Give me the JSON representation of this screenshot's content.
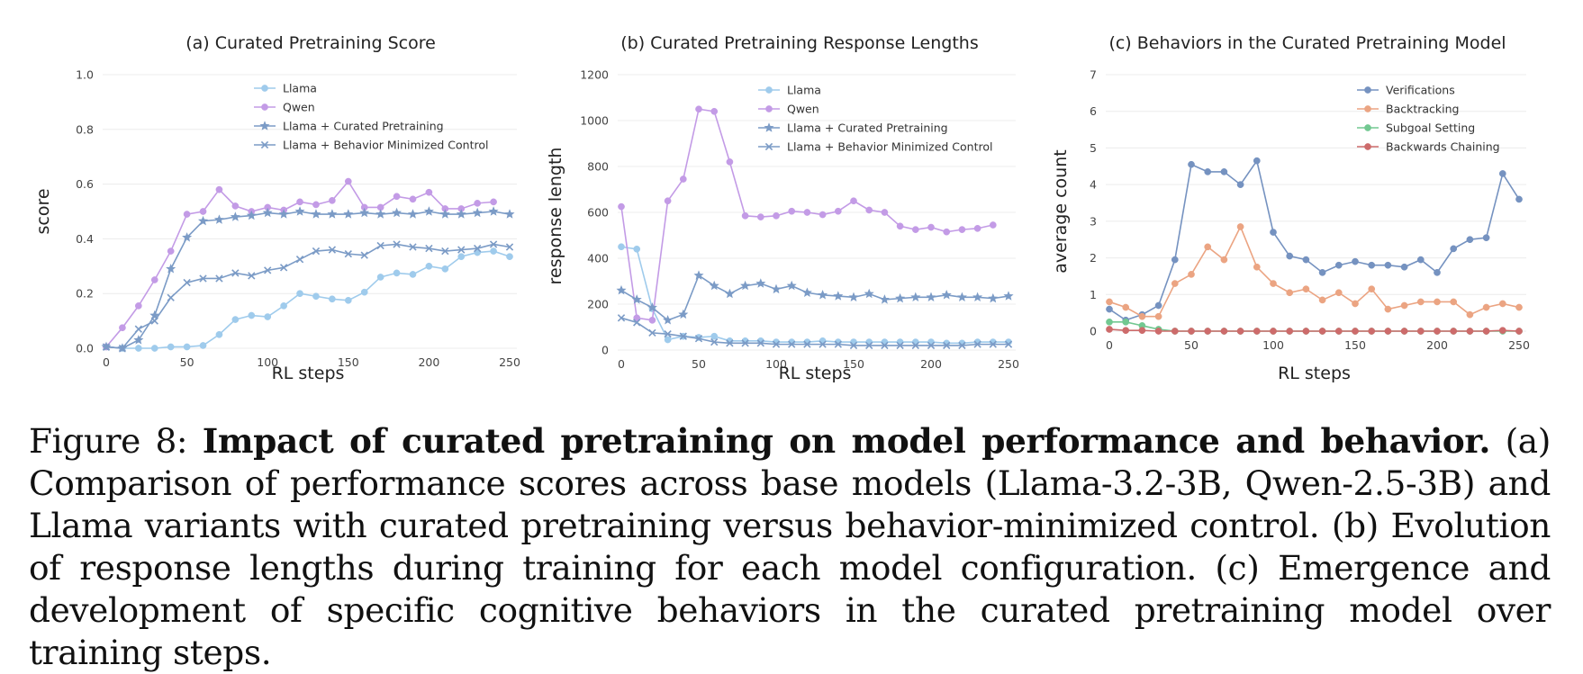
{
  "figure": {
    "caption_label": "Figure 8:",
    "caption_title": "Impact of curated pretraining on model performance and behavior.",
    "caption_body": "(a) Comparison of performance scores across base models (Llama-3.2-3B, Qwen-2.5-3B) and Llama variants with curated pretraining versus behavior-minimized control. (b) Evolution of response lengths during training for each model configuration. (c) Emergence and development of specific cognitive behaviors in the curated pretraining model over training steps."
  },
  "colors": {
    "llama": "#9fcbec",
    "qwen": "#c39be6",
    "curated": "#7b9bc6",
    "control": "#7b9bc6",
    "verifications": "#7592c0",
    "backtracking": "#eba482",
    "subgoal": "#72c891",
    "backwards": "#cd6b6b"
  },
  "chart_data": [
    {
      "type": "line",
      "title": "(a) Curated Pretraining Score",
      "xlabel": "RL steps",
      "ylabel": "score",
      "xlim": [
        0,
        250
      ],
      "ylim": [
        0,
        1.0
      ],
      "xticks": [
        "0",
        "50",
        "100",
        "150",
        "200",
        "250"
      ],
      "yticks": [
        "0.0",
        "0.2",
        "0.4",
        "0.6",
        "0.8",
        "1.0"
      ],
      "grid": true,
      "legend_position": "top-right",
      "x": [
        0,
        10,
        20,
        30,
        40,
        50,
        60,
        70,
        80,
        90,
        100,
        110,
        120,
        130,
        140,
        150,
        160,
        170,
        180,
        190,
        200,
        210,
        220,
        230,
        240,
        250
      ],
      "series": [
        {
          "name": "Llama",
          "marker": "circle",
          "color_key": "llama",
          "values": [
            0.005,
            0.0,
            0.0,
            0.0,
            0.005,
            0.005,
            0.01,
            0.05,
            0.105,
            0.12,
            0.115,
            0.155,
            0.2,
            0.19,
            0.18,
            0.175,
            0.205,
            0.26,
            0.275,
            0.27,
            0.3,
            0.29,
            0.335,
            0.35,
            0.355,
            0.335
          ]
        },
        {
          "name": "Qwen",
          "marker": "circle",
          "color_key": "qwen",
          "values": [
            0.005,
            0.075,
            0.155,
            0.25,
            0.355,
            0.49,
            0.5,
            0.58,
            0.52,
            0.5,
            0.515,
            0.505,
            0.535,
            0.525,
            0.54,
            0.61,
            0.515,
            0.515,
            0.555,
            0.545,
            0.57,
            0.51,
            0.51,
            0.53,
            0.535,
            null
          ]
        },
        {
          "name": "Llama + Curated Pretraining",
          "marker": "star",
          "color_key": "curated",
          "values": [
            0.005,
            0.0,
            0.03,
            0.12,
            0.29,
            0.405,
            0.465,
            0.47,
            0.48,
            0.485,
            0.495,
            0.49,
            0.5,
            0.49,
            0.49,
            0.49,
            0.495,
            0.49,
            0.495,
            0.49,
            0.5,
            0.49,
            0.49,
            0.495,
            0.5,
            0.49
          ]
        },
        {
          "name": "Llama + Behavior Minimized Control",
          "marker": "x",
          "color_key": "control",
          "values": [
            0.005,
            0.0,
            0.07,
            0.1,
            0.185,
            0.24,
            0.255,
            0.255,
            0.275,
            0.265,
            0.285,
            0.295,
            0.325,
            0.355,
            0.36,
            0.345,
            0.34,
            0.375,
            0.38,
            0.37,
            0.365,
            0.355,
            0.36,
            0.365,
            0.38,
            0.37
          ]
        }
      ]
    },
    {
      "type": "line",
      "title": "(b) Curated Pretraining Response Lengths",
      "xlabel": "RL steps",
      "ylabel": "response length",
      "xlim": [
        0,
        250
      ],
      "ylim": [
        0,
        1200
      ],
      "xticks": [
        "0",
        "50",
        "100",
        "150",
        "200",
        "250"
      ],
      "yticks": [
        "0",
        "200",
        "400",
        "600",
        "800",
        "1000",
        "1200"
      ],
      "grid": true,
      "legend_position": "top-right",
      "x": [
        0,
        10,
        20,
        30,
        40,
        50,
        60,
        70,
        80,
        90,
        100,
        110,
        120,
        130,
        140,
        150,
        160,
        170,
        180,
        190,
        200,
        210,
        220,
        230,
        240,
        250
      ],
      "series": [
        {
          "name": "Llama",
          "marker": "circle",
          "color_key": "llama",
          "values": [
            450,
            440,
            180,
            45,
            60,
            55,
            60,
            40,
            40,
            40,
            35,
            35,
            35,
            40,
            35,
            35,
            35,
            35,
            35,
            35,
            35,
            30,
            30,
            35,
            35,
            35
          ]
        },
        {
          "name": "Qwen",
          "marker": "circle",
          "color_key": "qwen",
          "values": [
            625,
            140,
            130,
            650,
            745,
            1050,
            1040,
            820,
            585,
            580,
            585,
            605,
            600,
            590,
            605,
            650,
            610,
            600,
            540,
            525,
            535,
            515,
            525,
            530,
            545,
            null
          ]
        },
        {
          "name": "Llama + Curated Pretraining",
          "marker": "star",
          "color_key": "curated",
          "values": [
            260,
            220,
            185,
            130,
            155,
            325,
            280,
            245,
            280,
            290,
            265,
            280,
            250,
            240,
            235,
            230,
            245,
            220,
            225,
            230,
            230,
            240,
            230,
            230,
            225,
            235
          ]
        },
        {
          "name": "Llama + Behavior Minimized Control",
          "marker": "x",
          "color_key": "control",
          "values": [
            140,
            120,
            75,
            70,
            60,
            50,
            35,
            30,
            30,
            30,
            25,
            25,
            25,
            25,
            25,
            20,
            20,
            20,
            20,
            20,
            20,
            20,
            20,
            25,
            25,
            25
          ]
        }
      ]
    },
    {
      "type": "line",
      "title": "(c) Behaviors in the Curated Pretraining Model",
      "xlabel": "RL steps",
      "ylabel": "average count",
      "xlim": [
        0,
        250
      ],
      "ylim": [
        0,
        7
      ],
      "xticks": [
        "0",
        "50",
        "100",
        "150",
        "200",
        "250"
      ],
      "yticks": [
        "0",
        "1",
        "2",
        "3",
        "4",
        "5",
        "6",
        "7"
      ],
      "grid": true,
      "legend_position": "top-right",
      "x": [
        0,
        10,
        20,
        30,
        40,
        50,
        60,
        70,
        80,
        90,
        100,
        110,
        120,
        130,
        140,
        150,
        160,
        170,
        180,
        190,
        200,
        210,
        220,
        230,
        240,
        250
      ],
      "series": [
        {
          "name": "Verifications",
          "marker": "circle",
          "color_key": "verifications",
          "values": [
            0.6,
            0.3,
            0.45,
            0.7,
            1.95,
            4.55,
            4.35,
            4.35,
            4.0,
            4.65,
            2.7,
            2.05,
            1.95,
            1.6,
            1.8,
            1.9,
            1.8,
            1.8,
            1.75,
            1.95,
            1.6,
            2.25,
            2.5,
            2.55,
            4.3,
            3.6
          ]
        },
        {
          "name": "Backtracking",
          "marker": "circle",
          "color_key": "backtracking",
          "values": [
            0.8,
            0.65,
            0.4,
            0.4,
            1.3,
            1.55,
            2.3,
            1.95,
            2.85,
            1.75,
            1.3,
            1.05,
            1.15,
            0.85,
            1.05,
            0.75,
            1.15,
            0.6,
            0.7,
            0.8,
            0.8,
            0.8,
            0.45,
            0.65,
            0.75,
            0.65
          ]
        },
        {
          "name": "Subgoal Setting",
          "marker": "circle",
          "color_key": "subgoal",
          "values": [
            0.25,
            0.25,
            0.15,
            0.05,
            0.0,
            0.0,
            0.0,
            0.0,
            0.0,
            0.0,
            0.0,
            0.0,
            0.0,
            0.0,
            0.0,
            0.0,
            0.0,
            0.0,
            0.0,
            0.0,
            0.0,
            0.0,
            0.0,
            0.0,
            0.0,
            0.0
          ]
        },
        {
          "name": "Backwards Chaining",
          "marker": "circle",
          "color_key": "backwards",
          "values": [
            0.05,
            0.02,
            0.02,
            0.0,
            0.0,
            0.0,
            0.0,
            0.0,
            0.0,
            0.0,
            0.0,
            0.0,
            0.0,
            0.0,
            0.0,
            0.0,
            0.0,
            0.0,
            0.0,
            0.0,
            0.0,
            0.0,
            0.0,
            0.0,
            0.02,
            0.0
          ]
        }
      ]
    }
  ]
}
